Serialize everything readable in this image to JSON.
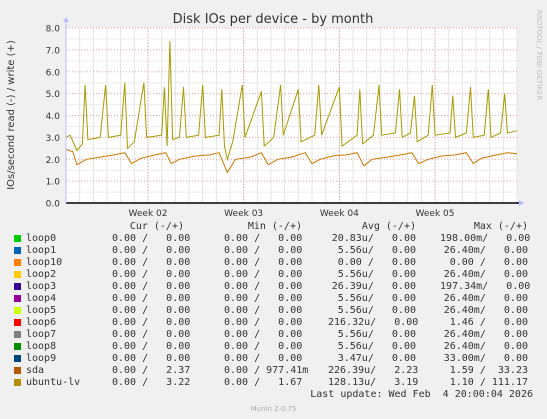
{
  "chart_data": {
    "type": "line",
    "title": "Disk IOs per device - by month",
    "ylabel": "IOs/second read (-) / write (+)",
    "side_label": "RRDTOOL / TOBI OETIKER",
    "ylim": [
      0,
      8
    ],
    "yticks": [
      {
        "v": 0,
        "label": "0.0"
      },
      {
        "v": 1,
        "label": "1.0"
      },
      {
        "v": 2,
        "label": "2.0"
      },
      {
        "v": 3,
        "label": "3.0"
      },
      {
        "v": 4,
        "label": "4.0"
      },
      {
        "v": 5,
        "label": "5.0"
      },
      {
        "v": 6,
        "label": "6.0"
      },
      {
        "v": 7,
        "label": "7.0"
      },
      {
        "v": 8,
        "label": "8.0"
      }
    ],
    "xlim": [
      0,
      33
    ],
    "xticks": [
      {
        "v": 6.0,
        "label": "Week 02"
      },
      {
        "v": 13.0,
        "label": "Week 03"
      },
      {
        "v": 20.0,
        "label": "Week 04"
      },
      {
        "v": 27.0,
        "label": "Week 05"
      }
    ],
    "series": [
      {
        "name": "sda",
        "color": "#cc7700",
        "points": [
          [
            0,
            2.45
          ],
          [
            0.5,
            2.35
          ],
          [
            0.8,
            1.75
          ],
          [
            1.5,
            2.0
          ],
          [
            2.5,
            2.1
          ],
          [
            3.5,
            2.2
          ],
          [
            4.3,
            2.3
          ],
          [
            4.8,
            1.8
          ],
          [
            5.5,
            2.05
          ],
          [
            6.5,
            2.2
          ],
          [
            7.3,
            2.3
          ],
          [
            7.7,
            1.8
          ],
          [
            8.3,
            2.0
          ],
          [
            9.5,
            2.15
          ],
          [
            10.5,
            2.2
          ],
          [
            11.2,
            2.3
          ],
          [
            11.8,
            1.4
          ],
          [
            12.4,
            2.0
          ],
          [
            13.5,
            2.1
          ],
          [
            14.3,
            2.3
          ],
          [
            14.8,
            1.75
          ],
          [
            15.5,
            2.0
          ],
          [
            16.5,
            2.1
          ],
          [
            17.5,
            2.3
          ],
          [
            18.0,
            1.8
          ],
          [
            18.6,
            2.0
          ],
          [
            19.5,
            2.15
          ],
          [
            20.5,
            2.2
          ],
          [
            21.3,
            2.3
          ],
          [
            21.8,
            1.7
          ],
          [
            22.4,
            2.0
          ],
          [
            23.5,
            2.1
          ],
          [
            24.5,
            2.2
          ],
          [
            25.3,
            2.3
          ],
          [
            25.8,
            1.8
          ],
          [
            26.5,
            2.0
          ],
          [
            27.5,
            2.15
          ],
          [
            28.5,
            2.2
          ],
          [
            29.3,
            2.3
          ],
          [
            29.8,
            1.8
          ],
          [
            30.4,
            2.05
          ],
          [
            31.5,
            2.2
          ],
          [
            32.3,
            2.3
          ],
          [
            33,
            2.25
          ]
        ]
      },
      {
        "name": "ubuntu-lv",
        "color": "#a89a00",
        "points": [
          [
            0,
            3.0
          ],
          [
            0.3,
            3.1
          ],
          [
            0.8,
            2.4
          ],
          [
            1.2,
            2.7
          ],
          [
            1.4,
            5.4
          ],
          [
            1.6,
            2.9
          ],
          [
            2.5,
            3.0
          ],
          [
            2.9,
            5.4
          ],
          [
            3.1,
            3.0
          ],
          [
            4.0,
            3.1
          ],
          [
            4.3,
            5.5
          ],
          [
            4.5,
            2.5
          ],
          [
            5.0,
            2.8
          ],
          [
            5.7,
            5.5
          ],
          [
            5.9,
            3.0
          ],
          [
            7.0,
            3.1
          ],
          [
            7.2,
            5.3
          ],
          [
            7.4,
            2.6
          ],
          [
            7.6,
            7.4
          ],
          [
            7.8,
            2.9
          ],
          [
            8.3,
            3.0
          ],
          [
            8.6,
            5.3
          ],
          [
            8.8,
            3.0
          ],
          [
            9.7,
            3.1
          ],
          [
            10.0,
            5.4
          ],
          [
            10.2,
            3.0
          ],
          [
            11.2,
            3.1
          ],
          [
            11.4,
            5.2
          ],
          [
            11.6,
            2.6
          ],
          [
            11.8,
            2.0
          ],
          [
            12.2,
            2.8
          ],
          [
            12.9,
            5.4
          ],
          [
            13.1,
            3.0
          ],
          [
            14.3,
            5.1
          ],
          [
            14.5,
            2.6
          ],
          [
            15.2,
            3.0
          ],
          [
            15.7,
            5.4
          ],
          [
            15.9,
            3.1
          ],
          [
            17.0,
            5.2
          ],
          [
            17.2,
            2.8
          ],
          [
            18.2,
            3.1
          ],
          [
            18.5,
            5.4
          ],
          [
            18.7,
            3.1
          ],
          [
            20.0,
            5.3
          ],
          [
            20.2,
            2.6
          ],
          [
            21.3,
            3.1
          ],
          [
            21.5,
            5.2
          ],
          [
            21.7,
            2.7
          ],
          [
            22.5,
            3.1
          ],
          [
            22.9,
            5.4
          ],
          [
            23.1,
            3.1
          ],
          [
            24.1,
            3.2
          ],
          [
            24.4,
            5.2
          ],
          [
            24.6,
            3.0
          ],
          [
            25.2,
            3.2
          ],
          [
            25.5,
            4.9
          ],
          [
            25.7,
            2.8
          ],
          [
            26.5,
            3.1
          ],
          [
            26.8,
            5.4
          ],
          [
            27.0,
            3.1
          ],
          [
            28.1,
            3.2
          ],
          [
            28.3,
            4.9
          ],
          [
            28.5,
            3.0
          ],
          [
            29.3,
            3.2
          ],
          [
            29.6,
            5.3
          ],
          [
            29.8,
            3.0
          ],
          [
            30.6,
            3.1
          ],
          [
            30.9,
            5.2
          ],
          [
            31.1,
            3.0
          ],
          [
            31.8,
            3.2
          ],
          [
            32.1,
            5.0
          ],
          [
            32.3,
            3.2
          ],
          [
            33,
            3.3
          ]
        ]
      }
    ],
    "legend_header": {
      "cur": "Cur (-/+)",
      "min": "Min (-/+)",
      "avg": "Avg (-/+)",
      "max": "Max (-/+)"
    },
    "legend": [
      {
        "name": "loop0",
        "color": "#00cc00",
        "cur": "0.00 /   0.00",
        "min": "0.00 /   0.00",
        "avg": "20.83u/   0.00",
        "max": "198.00m/   0.00"
      },
      {
        "name": "loop1",
        "color": "#0066b3",
        "cur": "0.00 /   0.00",
        "min": "0.00 /   0.00",
        "avg": "5.56u/   0.00",
        "max": "26.40m/   0.00"
      },
      {
        "name": "loop10",
        "color": "#ff8000",
        "cur": "0.00 /   0.00",
        "min": "0.00 /   0.00",
        "avg": "0.00 /   0.00",
        "max": "0.00 /   0.00"
      },
      {
        "name": "loop2",
        "color": "#ffcc00",
        "cur": "0.00 /   0.00",
        "min": "0.00 /   0.00",
        "avg": "5.56u/   0.00",
        "max": "26.40m/   0.00"
      },
      {
        "name": "loop3",
        "color": "#330099",
        "cur": "0.00 /   0.00",
        "min": "0.00 /   0.00",
        "avg": "26.39u/   0.00",
        "max": "197.34m/   0.00"
      },
      {
        "name": "loop4",
        "color": "#990099",
        "cur": "0.00 /   0.00",
        "min": "0.00 /   0.00",
        "avg": "5.56u/   0.00",
        "max": "26.40m/   0.00"
      },
      {
        "name": "loop5",
        "color": "#ccff00",
        "cur": "0.00 /   0.00",
        "min": "0.00 /   0.00",
        "avg": "5.56u/   0.00",
        "max": "26.40m/   0.00"
      },
      {
        "name": "loop6",
        "color": "#ff0000",
        "cur": "0.00 /   0.00",
        "min": "0.00 /   0.00",
        "avg": "216.32u/   0.00",
        "max": "1.46 /   0.00"
      },
      {
        "name": "loop7",
        "color": "#808080",
        "cur": "0.00 /   0.00",
        "min": "0.00 /   0.00",
        "avg": "5.56u/   0.00",
        "max": "26.40m/   0.00"
      },
      {
        "name": "loop8",
        "color": "#008f00",
        "cur": "0.00 /   0.00",
        "min": "0.00 /   0.00",
        "avg": "5.56u/   0.00",
        "max": "26.40m/   0.00"
      },
      {
        "name": "loop9",
        "color": "#00487d",
        "cur": "0.00 /   0.00",
        "min": "0.00 /   0.00",
        "avg": "3.47u/   0.00",
        "max": "33.00m/   0.00"
      },
      {
        "name": "sda",
        "color": "#b35a00",
        "cur": "0.00 /   2.37",
        "min": "0.00 / 977.41m",
        "avg": "226.39u/   2.23",
        "max": "1.59 /  33.23"
      },
      {
        "name": "ubuntu-lv",
        "color": "#b38f00",
        "cur": "0.00 /   3.22",
        "min": "0.00 /   1.67",
        "avg": "128.13u/   3.19",
        "max": "1.10 / 111.17"
      }
    ],
    "last_update": "Last update: Wed Feb  4 20:00:04 2026",
    "munin_version": "Munin 2.0.75"
  }
}
